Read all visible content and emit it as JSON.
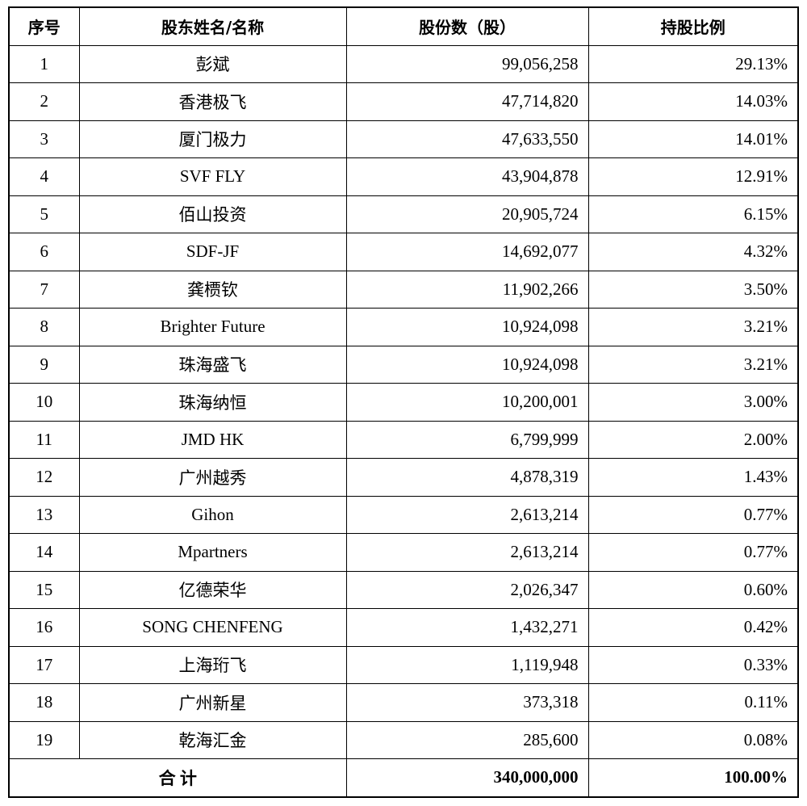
{
  "table": {
    "header": [
      "序号",
      "股东姓名/名称",
      "股份数（股）",
      "持股比例"
    ],
    "rows": [
      [
        "1",
        "彭斌",
        "99,056,258",
        "29.13%"
      ],
      [
        "2",
        "香港极飞",
        "47,714,820",
        "14.03%"
      ],
      [
        "3",
        "厦门极力",
        "47,633,550",
        "14.01%"
      ],
      [
        "4",
        "SVF FLY",
        "43,904,878",
        "12.91%"
      ],
      [
        "5",
        "佰山投资",
        "20,905,724",
        "6.15%"
      ],
      [
        "6",
        "SDF-JF",
        "14,692,077",
        "4.32%"
      ],
      [
        "7",
        "龚槚钦",
        "11,902,266",
        "3.50%"
      ],
      [
        "8",
        "Brighter Future",
        "10,924,098",
        "3.21%"
      ],
      [
        "9",
        "珠海盛飞",
        "10,924,098",
        "3.21%"
      ],
      [
        "10",
        "珠海纳恒",
        "10,200,001",
        "3.00%"
      ],
      [
        "11",
        "JMD HK",
        "6,799,999",
        "2.00%"
      ],
      [
        "12",
        "广州越秀",
        "4,878,319",
        "1.43%"
      ],
      [
        "13",
        "Gihon",
        "2,613,214",
        "0.77%"
      ],
      [
        "14",
        "Mpartners",
        "2,613,214",
        "0.77%"
      ],
      [
        "15",
        "亿德荣华",
        "2,026,347",
        "0.60%"
      ],
      [
        "16",
        "SONG CHENFENG",
        "1,432,271",
        "0.42%"
      ],
      [
        "17",
        "上海珩飞",
        "1,119,948",
        "0.33%"
      ],
      [
        "18",
        "广州新星",
        "373,318",
        "0.11%"
      ],
      [
        "19",
        "乾海汇金",
        "285,600",
        "0.08%"
      ]
    ],
    "total": {
      "label": "合 计",
      "shares": "340,000,000",
      "percent": "100.00%"
    }
  }
}
